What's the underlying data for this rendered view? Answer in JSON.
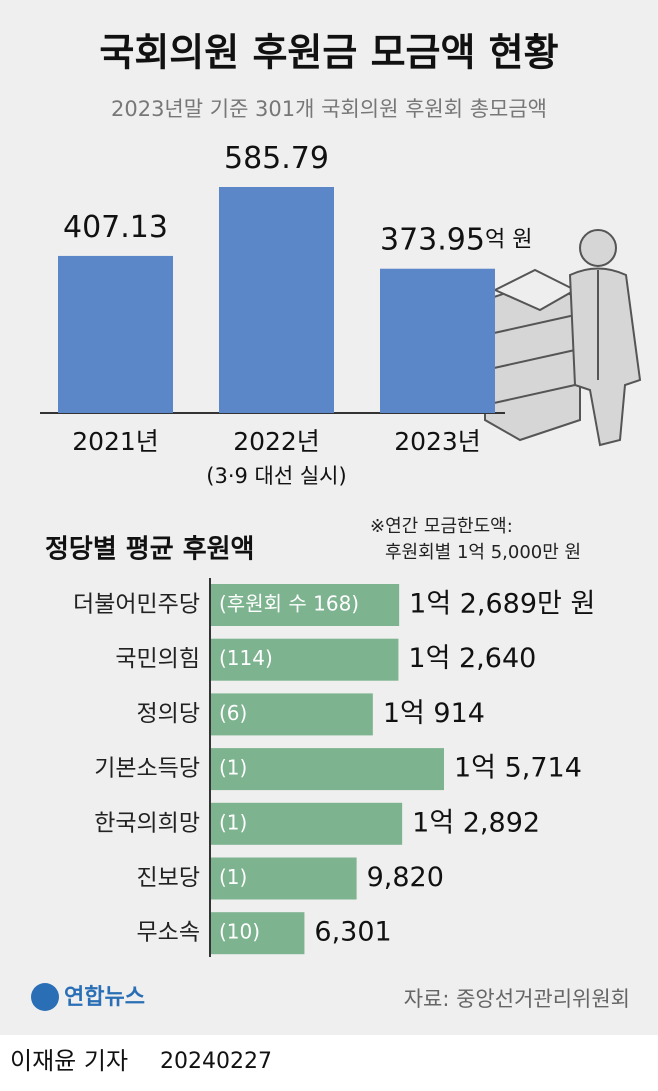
{
  "chart_data": [
    {
      "type": "bar",
      "title": "국회의원 후원금 모금액 현황",
      "subtitle": "2023년말 기준 301개 국회의원 후원회 총모금액",
      "categories": [
        "2021년",
        "2022년",
        "2023년"
      ],
      "category_notes": [
        null,
        "(3·9 대선 실시)",
        null
      ],
      "values": [
        407.13,
        585.79,
        373.95
      ],
      "unit": "억 원",
      "color": "#5b87c9"
    },
    {
      "type": "hbar",
      "title": "정당별 평균 후원액",
      "note": [
        "※연간 모금한도액:",
        "후원회별 1억 5,000만 원"
      ],
      "categories": [
        "더불어민주당",
        "국민의힘",
        "정의당",
        "기본소득당",
        "한국의희망",
        "진보당",
        "무소속"
      ],
      "values": [
        12689,
        12640,
        10914,
        15714,
        12892,
        9820,
        6301
      ],
      "value_labels": [
        "1억 2,689만 원",
        "1억 2,640",
        "1억 914",
        "1억 5,714",
        "1억 2,892",
        "9,820",
        "6,301"
      ],
      "count_labels": [
        "(후원회 수 168)",
        "(114)",
        "(6)",
        "(1)",
        "(1)",
        "(1)",
        "(10)"
      ],
      "color": "#7db38f"
    }
  ],
  "footer": {
    "logo": "연합뉴스",
    "source": "자료: 중앙선거관리위원회",
    "reporter": "이재윤 기자",
    "date": "20240227"
  }
}
